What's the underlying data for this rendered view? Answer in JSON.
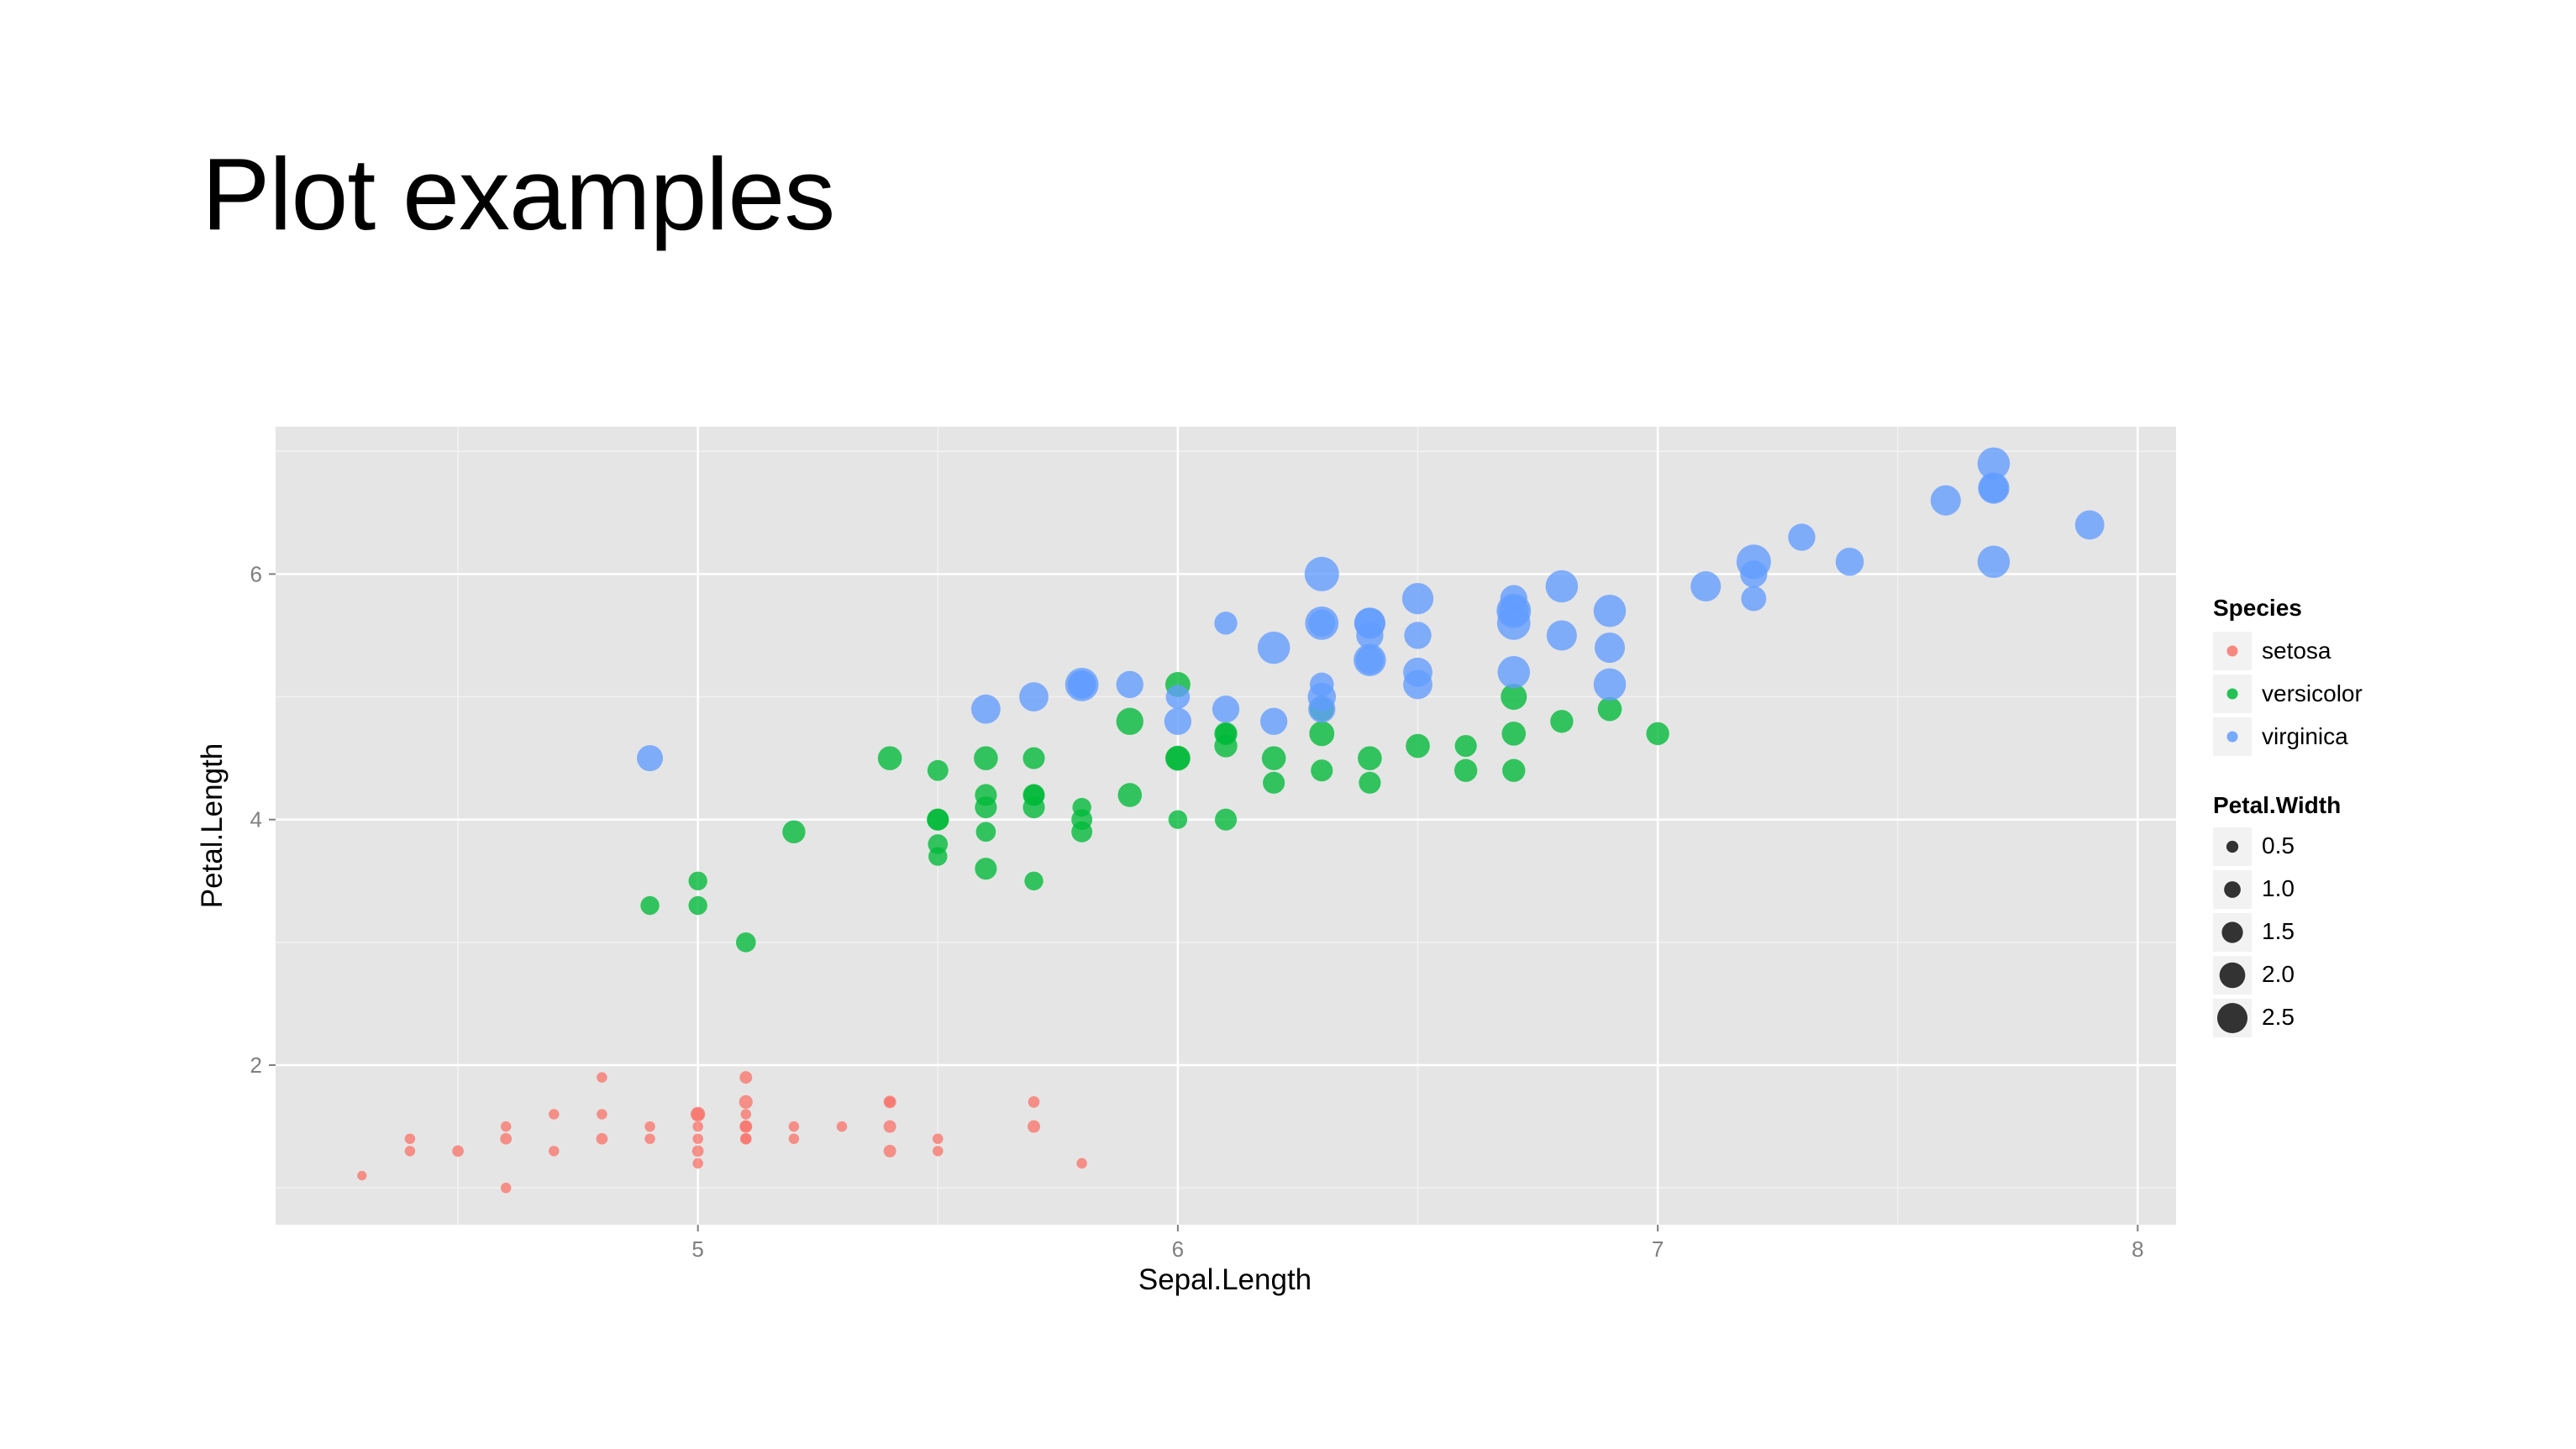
{
  "slide": {
    "title": "Plot examples"
  },
  "chart_data": {
    "type": "scatter",
    "xlabel": "Sepal.Length",
    "ylabel": "Petal.Length",
    "xlim": [
      4.12,
      8.08
    ],
    "ylim": [
      0.7,
      7.2
    ],
    "x_ticks": [
      5,
      6,
      7,
      8
    ],
    "y_ticks": [
      2,
      4,
      6
    ],
    "grid": true,
    "background": "#e5e5e5",
    "grid_color": "#ffffff",
    "legend_placement": "right",
    "color_legend": {
      "title": "Species",
      "entries": [
        {
          "name": "setosa",
          "color": "#f8766d"
        },
        {
          "name": "versicolor",
          "color": "#00ba38"
        },
        {
          "name": "virginica",
          "color": "#619cff"
        }
      ]
    },
    "size_legend": {
      "title": "Petal.Width",
      "entries": [
        {
          "label": "0.5",
          "value": 0.5
        },
        {
          "label": "1.0",
          "value": 1.0
        },
        {
          "label": "1.5",
          "value": 1.5
        },
        {
          "label": "2.0",
          "value": 2.0
        },
        {
          "label": "2.5",
          "value": 2.5
        }
      ]
    },
    "series": [
      {
        "name": "setosa",
        "color": "#f8766d",
        "points": [
          [
            4.3,
            1.1,
            0.1
          ],
          [
            4.4,
            1.4,
            0.2
          ],
          [
            4.4,
            1.3,
            0.2
          ],
          [
            4.5,
            1.3,
            0.3
          ],
          [
            4.6,
            1.5,
            0.2
          ],
          [
            4.6,
            1.4,
            0.3
          ],
          [
            4.6,
            1.0,
            0.2
          ],
          [
            4.7,
            1.6,
            0.2
          ],
          [
            4.7,
            1.3,
            0.2
          ],
          [
            4.8,
            1.9,
            0.2
          ],
          [
            4.8,
            1.6,
            0.2
          ],
          [
            4.8,
            1.4,
            0.3
          ],
          [
            4.9,
            1.5,
            0.2
          ],
          [
            4.9,
            1.4,
            0.2
          ],
          [
            5.0,
            1.6,
            0.6
          ],
          [
            5.0,
            1.6,
            0.4
          ],
          [
            5.0,
            1.5,
            0.2
          ],
          [
            5.0,
            1.4,
            0.2
          ],
          [
            5.0,
            1.3,
            0.3
          ],
          [
            5.0,
            1.2,
            0.2
          ],
          [
            5.1,
            1.9,
            0.4
          ],
          [
            5.1,
            1.7,
            0.5
          ],
          [
            5.1,
            1.6,
            0.2
          ],
          [
            5.1,
            1.5,
            0.4
          ],
          [
            5.1,
            1.5,
            0.3
          ],
          [
            5.1,
            1.4,
            0.3
          ],
          [
            5.1,
            1.4,
            0.2
          ],
          [
            5.2,
            1.5,
            0.2
          ],
          [
            5.2,
            1.4,
            0.2
          ],
          [
            5.3,
            1.5,
            0.2
          ],
          [
            5.4,
            1.7,
            0.4
          ],
          [
            5.4,
            1.7,
            0.2
          ],
          [
            5.4,
            1.5,
            0.4
          ],
          [
            5.4,
            1.3,
            0.4
          ],
          [
            5.5,
            1.4,
            0.2
          ],
          [
            5.5,
            1.3,
            0.2
          ],
          [
            5.7,
            1.7,
            0.3
          ],
          [
            5.7,
            1.5,
            0.4
          ],
          [
            5.8,
            1.2,
            0.2
          ]
        ]
      },
      {
        "name": "versicolor",
        "color": "#00ba38",
        "points": [
          [
            4.9,
            3.3,
            1.0
          ],
          [
            5.0,
            3.5,
            1.0
          ],
          [
            5.0,
            3.3,
            1.0
          ],
          [
            5.1,
            3.0,
            1.1
          ],
          [
            5.2,
            3.9,
            1.4
          ],
          [
            5.4,
            4.5,
            1.5
          ],
          [
            5.5,
            4.4,
            1.2
          ],
          [
            5.5,
            4.0,
            1.3
          ],
          [
            5.5,
            4.0,
            1.3
          ],
          [
            5.5,
            3.8,
            1.1
          ],
          [
            5.5,
            3.7,
            1.0
          ],
          [
            5.6,
            4.5,
            1.5
          ],
          [
            5.6,
            4.2,
            1.3
          ],
          [
            5.6,
            4.1,
            1.3
          ],
          [
            5.6,
            3.9,
            1.1
          ],
          [
            5.6,
            3.6,
            1.3
          ],
          [
            5.7,
            4.5,
            1.3
          ],
          [
            5.7,
            4.2,
            1.3
          ],
          [
            5.7,
            4.2,
            1.2
          ],
          [
            5.7,
            4.1,
            1.3
          ],
          [
            5.7,
            3.5,
            1.0
          ],
          [
            5.8,
            4.1,
            1.0
          ],
          [
            5.8,
            4.0,
            1.2
          ],
          [
            5.8,
            3.9,
            1.2
          ],
          [
            5.9,
            4.8,
            1.8
          ],
          [
            5.9,
            4.2,
            1.5
          ],
          [
            6.0,
            5.1,
            1.6
          ],
          [
            6.0,
            4.5,
            1.6
          ],
          [
            6.0,
            4.5,
            1.5
          ],
          [
            6.0,
            4.0,
            1.0
          ],
          [
            6.1,
            4.7,
            1.4
          ],
          [
            6.1,
            4.7,
            1.2
          ],
          [
            6.1,
            4.6,
            1.4
          ],
          [
            6.1,
            4.0,
            1.3
          ],
          [
            6.2,
            4.5,
            1.5
          ],
          [
            6.2,
            4.3,
            1.3
          ],
          [
            6.3,
            4.9,
            1.5
          ],
          [
            6.3,
            4.7,
            1.6
          ],
          [
            6.3,
            4.4,
            1.3
          ],
          [
            6.4,
            4.5,
            1.5
          ],
          [
            6.4,
            4.3,
            1.3
          ],
          [
            6.5,
            4.6,
            1.5
          ],
          [
            6.6,
            4.6,
            1.3
          ],
          [
            6.6,
            4.4,
            1.4
          ],
          [
            6.7,
            5.0,
            1.7
          ],
          [
            6.7,
            4.7,
            1.5
          ],
          [
            6.7,
            4.4,
            1.4
          ],
          [
            6.8,
            4.8,
            1.4
          ],
          [
            6.9,
            4.9,
            1.5
          ],
          [
            7.0,
            4.7,
            1.4
          ]
        ]
      },
      {
        "name": "virginica",
        "color": "#619cff",
        "points": [
          [
            4.9,
            4.5,
            1.7
          ],
          [
            5.6,
            4.9,
            2.0
          ],
          [
            5.7,
            5.0,
            2.0
          ],
          [
            5.8,
            5.1,
            2.4
          ],
          [
            5.8,
            5.1,
            1.9
          ],
          [
            5.8,
            5.1,
            1.9
          ],
          [
            5.9,
            5.1,
            1.8
          ],
          [
            6.0,
            5.0,
            1.5
          ],
          [
            6.0,
            4.8,
            1.8
          ],
          [
            6.1,
            5.6,
            1.4
          ],
          [
            6.1,
            4.9,
            1.8
          ],
          [
            6.2,
            5.4,
            2.3
          ],
          [
            6.2,
            4.8,
            1.8
          ],
          [
            6.3,
            6.0,
            2.5
          ],
          [
            6.3,
            5.6,
            2.4
          ],
          [
            6.3,
            5.6,
            1.8
          ],
          [
            6.3,
            5.1,
            1.5
          ],
          [
            6.3,
            5.0,
            1.9
          ],
          [
            6.3,
            4.9,
            1.8
          ],
          [
            6.4,
            5.6,
            2.2
          ],
          [
            6.4,
            5.6,
            2.1
          ],
          [
            6.4,
            5.5,
            1.8
          ],
          [
            6.4,
            5.3,
            2.3
          ],
          [
            6.4,
            5.3,
            1.9
          ],
          [
            6.5,
            5.8,
            2.2
          ],
          [
            6.5,
            5.5,
            1.8
          ],
          [
            6.5,
            5.2,
            2.0
          ],
          [
            6.5,
            5.1,
            2.0
          ],
          [
            6.7,
            5.8,
            1.8
          ],
          [
            6.7,
            5.7,
            2.5
          ],
          [
            6.7,
            5.7,
            2.1
          ],
          [
            6.7,
            5.6,
            2.4
          ],
          [
            6.7,
            5.2,
            2.3
          ],
          [
            6.8,
            5.9,
            2.3
          ],
          [
            6.8,
            5.5,
            2.1
          ],
          [
            6.9,
            5.7,
            2.3
          ],
          [
            6.9,
            5.4,
            2.1
          ],
          [
            6.9,
            5.1,
            2.3
          ],
          [
            7.1,
            5.9,
            2.1
          ],
          [
            7.2,
            6.1,
            2.5
          ],
          [
            7.2,
            6.0,
            1.8
          ],
          [
            7.2,
            5.8,
            1.6
          ],
          [
            7.3,
            6.3,
            1.8
          ],
          [
            7.4,
            6.1,
            1.9
          ],
          [
            7.6,
            6.6,
            2.1
          ],
          [
            7.7,
            6.9,
            2.3
          ],
          [
            7.7,
            6.7,
            2.2
          ],
          [
            7.7,
            6.7,
            2.0
          ],
          [
            7.7,
            6.1,
            2.3
          ],
          [
            7.9,
            6.4,
            2.0
          ]
        ]
      }
    ]
  }
}
